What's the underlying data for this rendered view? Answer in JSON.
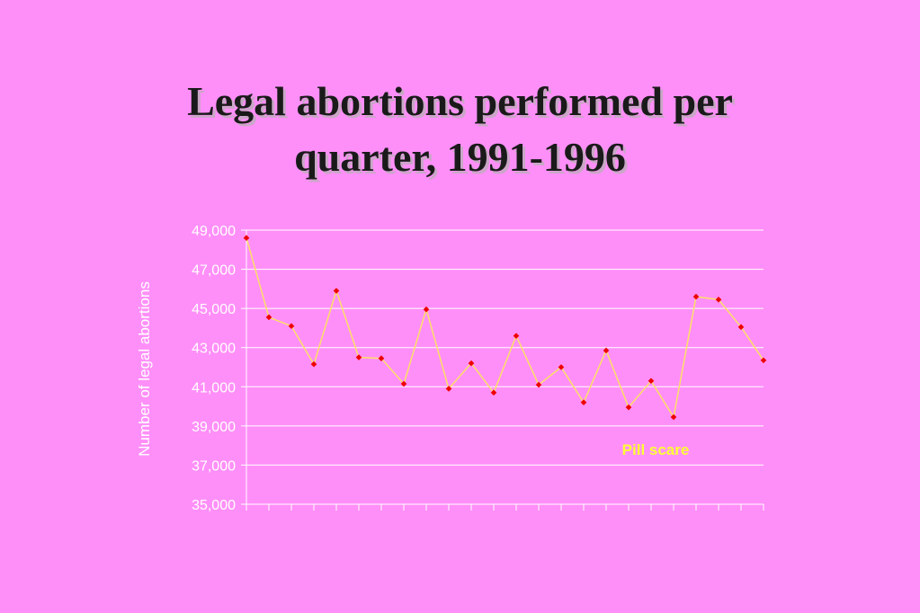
{
  "slide": {
    "title": "Legal abortions performed per\nquarter, 1991-1996"
  },
  "chart_data": {
    "type": "line",
    "title": "Legal abortions performed per quarter, 1991-1996",
    "xlabel": "",
    "ylabel": "Number of legal abortions",
    "ylim": [
      35000,
      49000
    ],
    "yticks": [
      "35,000",
      "37,000",
      "39,000",
      "41,000",
      "43,000",
      "45,000",
      "47,000",
      "49,000"
    ],
    "grid": true,
    "series": [
      {
        "name": "",
        "values": [
          48600,
          44550,
          44100,
          42150,
          45900,
          42500,
          42450,
          41150,
          44950,
          40900,
          42200,
          40700,
          43600,
          41100,
          42000,
          40200,
          42850,
          39950,
          41300,
          39450,
          45600,
          45450,
          44050,
          42350
        ]
      }
    ],
    "annotations": [
      {
        "text": "Pill scare",
        "near_point": 19
      }
    ],
    "colors": {
      "line": "#ffe066",
      "marker": "#ee0000",
      "gridline": "#ffffff",
      "text": "#ffffff",
      "annotation": "#ffff33"
    }
  }
}
